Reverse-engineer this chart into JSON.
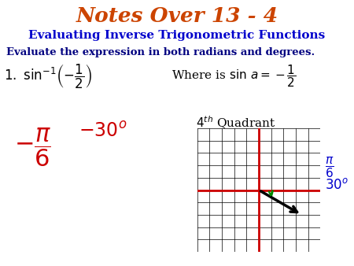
{
  "title": "Notes Over 13 - 4",
  "title_color": "#cc4400",
  "subtitle": "Evaluating Inverse Trigonometric Functions",
  "subtitle_color": "#0000cc",
  "instruction": "Evaluate the expression in both radians and degrees.",
  "instruction_color": "#000080",
  "bg_color": "#ffffff",
  "expr1": "$1.\\ \\sin^{-1}\\!\\left(-\\dfrac{1}{2}\\right)$",
  "where_text": "Where is $\\sin\\,a = -\\dfrac{1}{2}$",
  "quadrant_text": "$4^{th}$ Quadrant",
  "answer_rad": "$-\\dfrac{\\pi}{6}$",
  "answer_deg": "$-30^{o}$",
  "answer_color": "#cc0000",
  "grid_color": "#000000",
  "axis_color": "#cc0000",
  "arrow_color": "#000000",
  "arc_color": "#008800",
  "label_color": "#0000cc",
  "label_pi6": "$\\dfrac{\\pi}{6}$",
  "label_30": "$30^{o}$"
}
